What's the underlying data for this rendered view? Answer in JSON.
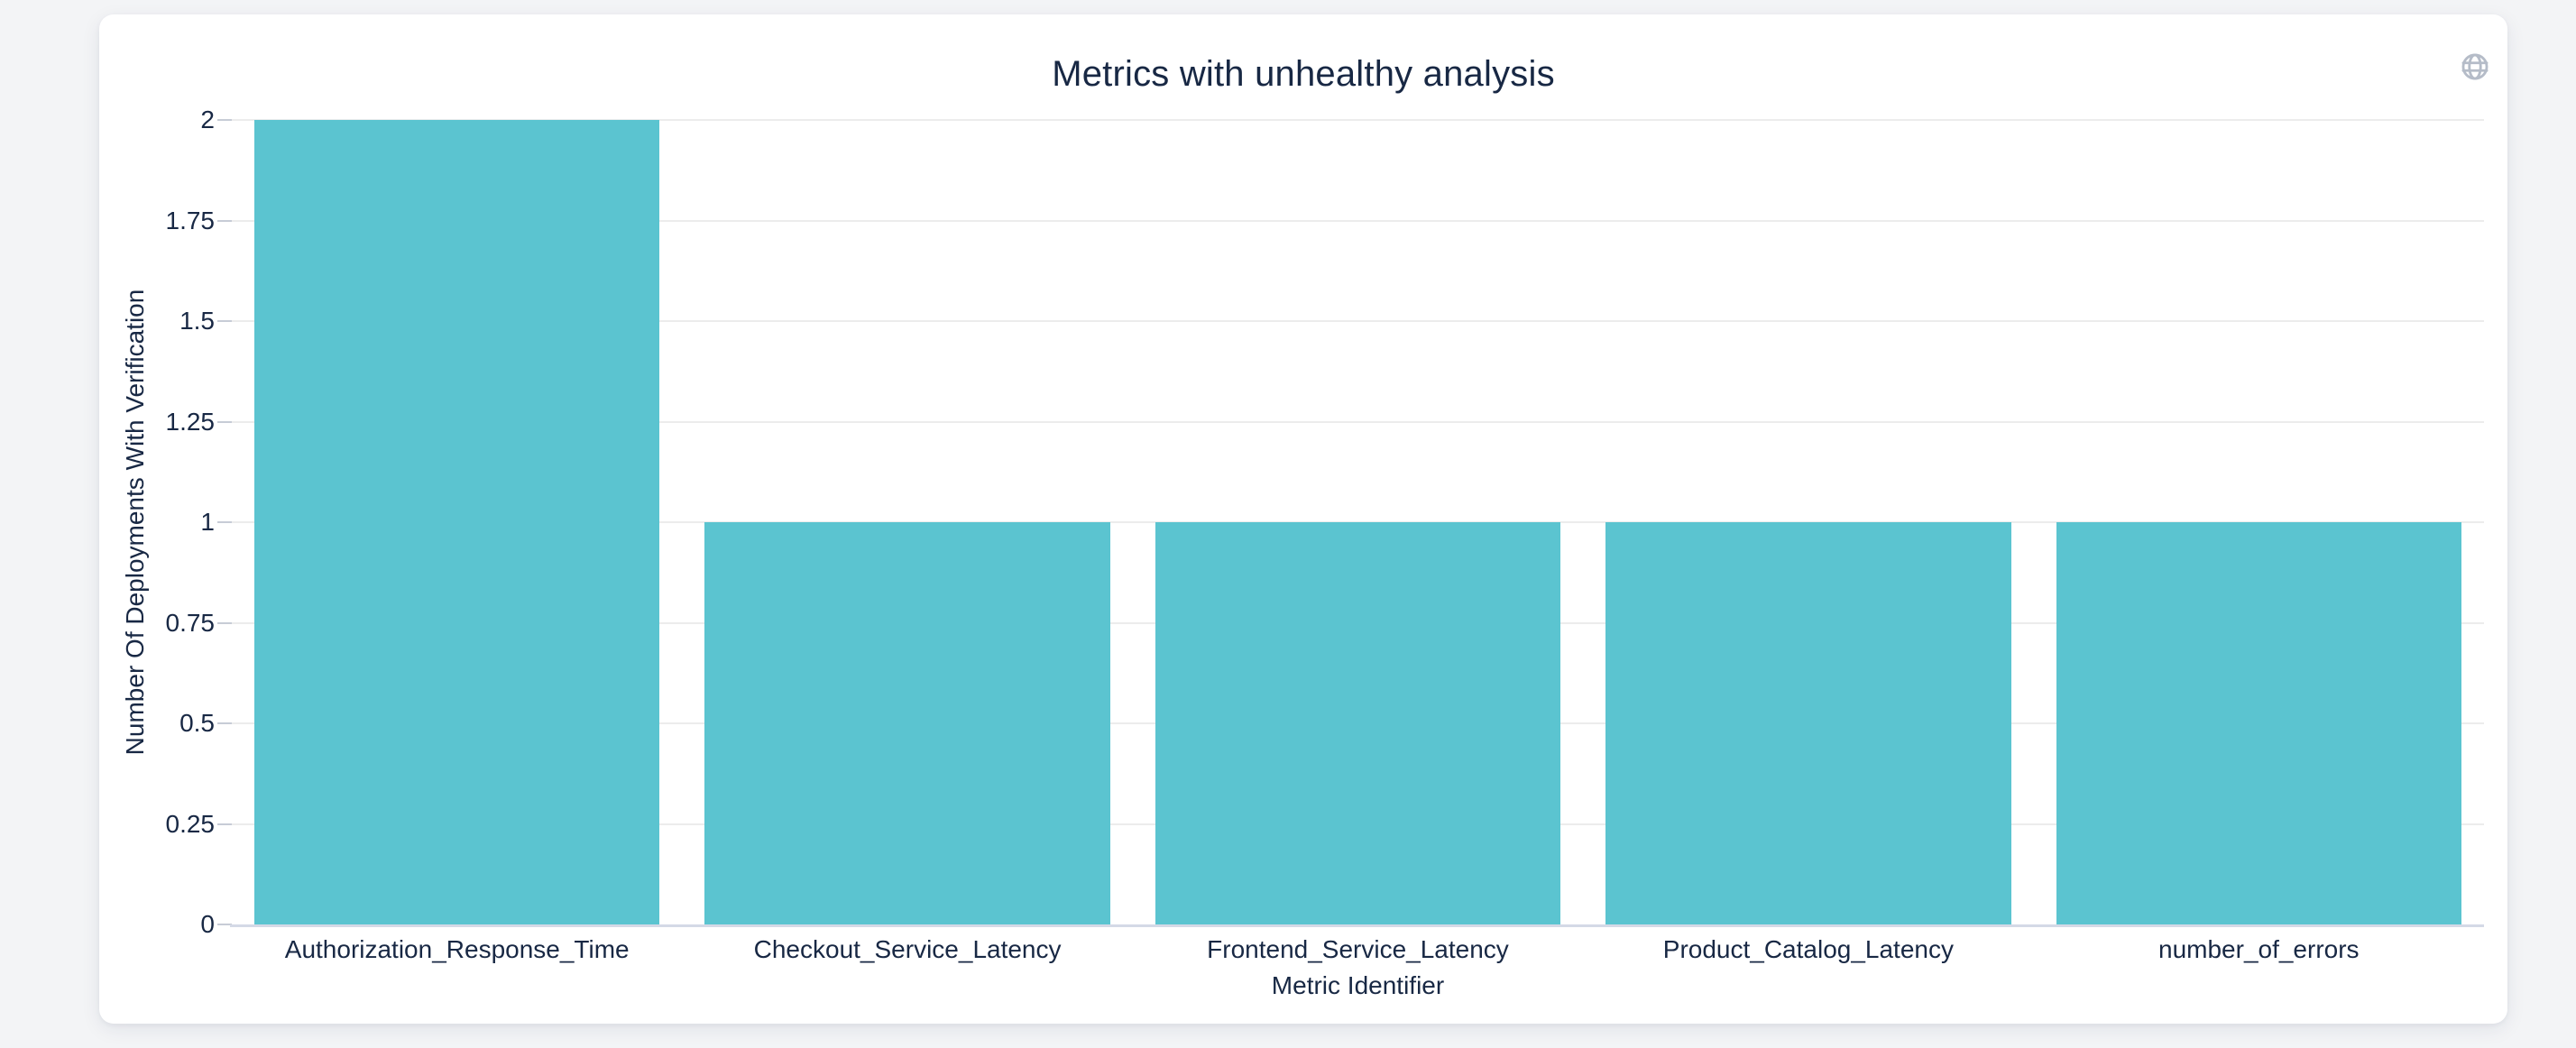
{
  "window": {
    "background_color": "#f3f4f6",
    "card_background_color": "#ffffff"
  },
  "header": {
    "globe_icon": {
      "name": "globe-icon",
      "color": "#b5bcc8"
    }
  },
  "chart_data": {
    "type": "bar",
    "title": "Metrics with unhealthy analysis",
    "xlabel": "Metric Identifier",
    "ylabel": "Number Of Deployments With Verification",
    "categories": [
      "Authorization_Response_Time",
      "Checkout_Service_Latency",
      "Frontend_Service_Latency",
      "Product_Catalog_Latency",
      "number_of_errors"
    ],
    "values": [
      2,
      1,
      1,
      1,
      1
    ],
    "ylim": [
      0,
      2
    ],
    "ytick_labels": [
      "0",
      "0.25",
      "0.5",
      "0.75",
      "1",
      "1.25",
      "1.5",
      "1.75",
      "2"
    ],
    "ytick_values": [
      0,
      0.25,
      0.5,
      0.75,
      1,
      1.25,
      1.5,
      1.75,
      2
    ],
    "bar_color": "#5bc4d0",
    "grid": "on",
    "legend": "none",
    "colors": {
      "text": "#182844",
      "gridline": "#ececec",
      "axis_line": "#d4d9e6",
      "tick_mark": "#c7ccd6"
    }
  }
}
